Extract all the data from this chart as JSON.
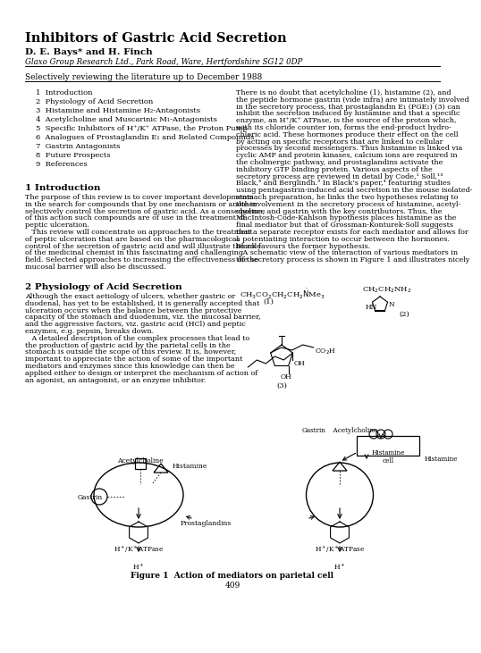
{
  "title": "Inhibitors of Gastric Acid Secretion",
  "authors": "D. E. Bays* and H. Finch",
  "affiliation": "Glaxo Group Research Ltd., Park Road, Ware, Hertfordshire SG12 0DP",
  "subtitle": "Selectively reviewing the literature up to December 1988",
  "toc": [
    "1  Introduction",
    "2  Physiology of Acid Secretion",
    "3  Histamine and Histamine H₂-Antagonists",
    "4  Acetylcholine and Muscarinic M₁-Antagonists",
    "5  Specific Inhibitors of H⁺/K⁺ ATPase, the Proton Pump",
    "6  Analogues of Prostaglandin E₁ and Related Compounds",
    "7  Gastrin Antagonists",
    "8  Future Prospects",
    "9  References"
  ],
  "section1_title": "1 Introduction",
  "section1_lines": [
    "The purpose of this review is to cover important developments",
    "in the search for compounds that by one mechanism or another",
    "selectively control the secretion of gastric acid. As a consequence",
    "of this action such compounds are of use in the treatment of",
    "peptic ulceration.",
    "   This review will concentrate on approaches to the treatment",
    "of peptic ulceration that are based on the pharmacological",
    "control of the secretion of gastric acid and will illustrate the role",
    "of the medicinal chemist in this fascinating and challenging",
    "field. Selected approaches to increasing the effectiveness of the",
    "mucosal barrier will also be discussed."
  ],
  "section2_title": "2 Physiology of Acid Secretion",
  "section2_lines": [
    "Although the exact aetiology of ulcers, whether gastric or",
    "duodenal, has yet to be established, it is generally accepted that",
    "ulceration occurs when the balance between the protective",
    "capacity of the stomach and duodenum, viz. the mucosal barrier,",
    "and the aggressive factors, viz. gastric acid (HCl) and peptic",
    "enzymes, e.g. pepsin, breaks down.",
    "   A detailed description of the complex processes that lead to",
    "the production of gastric acid by the parietal cells in the",
    "stomach is outside the scope of this review. It is, however,",
    "important to appreciate the action of some of the important",
    "mediators and enzymes since this knowledge can then be",
    "applied either to design or interpret the mechanism of action of",
    "an agonist, an antagonist, or an enzyme inhibitor."
  ],
  "right_col_lines": [
    "There is no doubt that acetylcholine (1), histamine (2), and",
    "the peptide hormone gastrin (vide infra) are intimately involved",
    "in the secretory process, that prostaglandin E₁ (PGE₁) (3) can",
    "inhibit the secretion induced by histamine and that a specific",
    "enzyme, an H⁺/K⁺ ATPase, is the source of the proton which,",
    "with its chloride counter ion, forms the end-product hydro-",
    "chloric acid. These hormones produce their effect on the cell",
    "by acting on specific receptors that are linked to cellular",
    "processes by second messengers. Thus histamine is linked via",
    "cyclic AMP and protein kinases, calcium ions are required in",
    "the cholinergic pathway, and prostaglandins activate the",
    "inhibitory GTP binding protein. Various aspects of the",
    "secretory process are reviewed in detail by Code,¹ Soll,¹³",
    "Black,⁴ and Berglindh.⁵ In Black’s paper,⁴ featuring studies",
    "using pentagastrin-induced acid secretion in the mouse isolated-",
    "stomach preparation, he links the two hypotheses relating to",
    "the involvement in the secretory process of histamine, acetyl-",
    "choline, and gastrin with the key contributors. Thus, the",
    "MacIntosh-Code-Kahlson hypothesis places histamine as the",
    "final mediator but that of Grossman-Konturek-Soll suggests",
    "that a separate receptor exists for each mediator and allows for",
    "a potentiating interaction to occur between the hormones.",
    "Black favours the former hypothesis.",
    "   A schematic view of the interaction of various mediators in",
    "the secretory process is shown in Figure 1 and illustrates nicely"
  ],
  "figure_caption": "Figure 1  Action of mediators on parietal cell",
  "page_number": "409",
  "bg_color": "#ffffff"
}
